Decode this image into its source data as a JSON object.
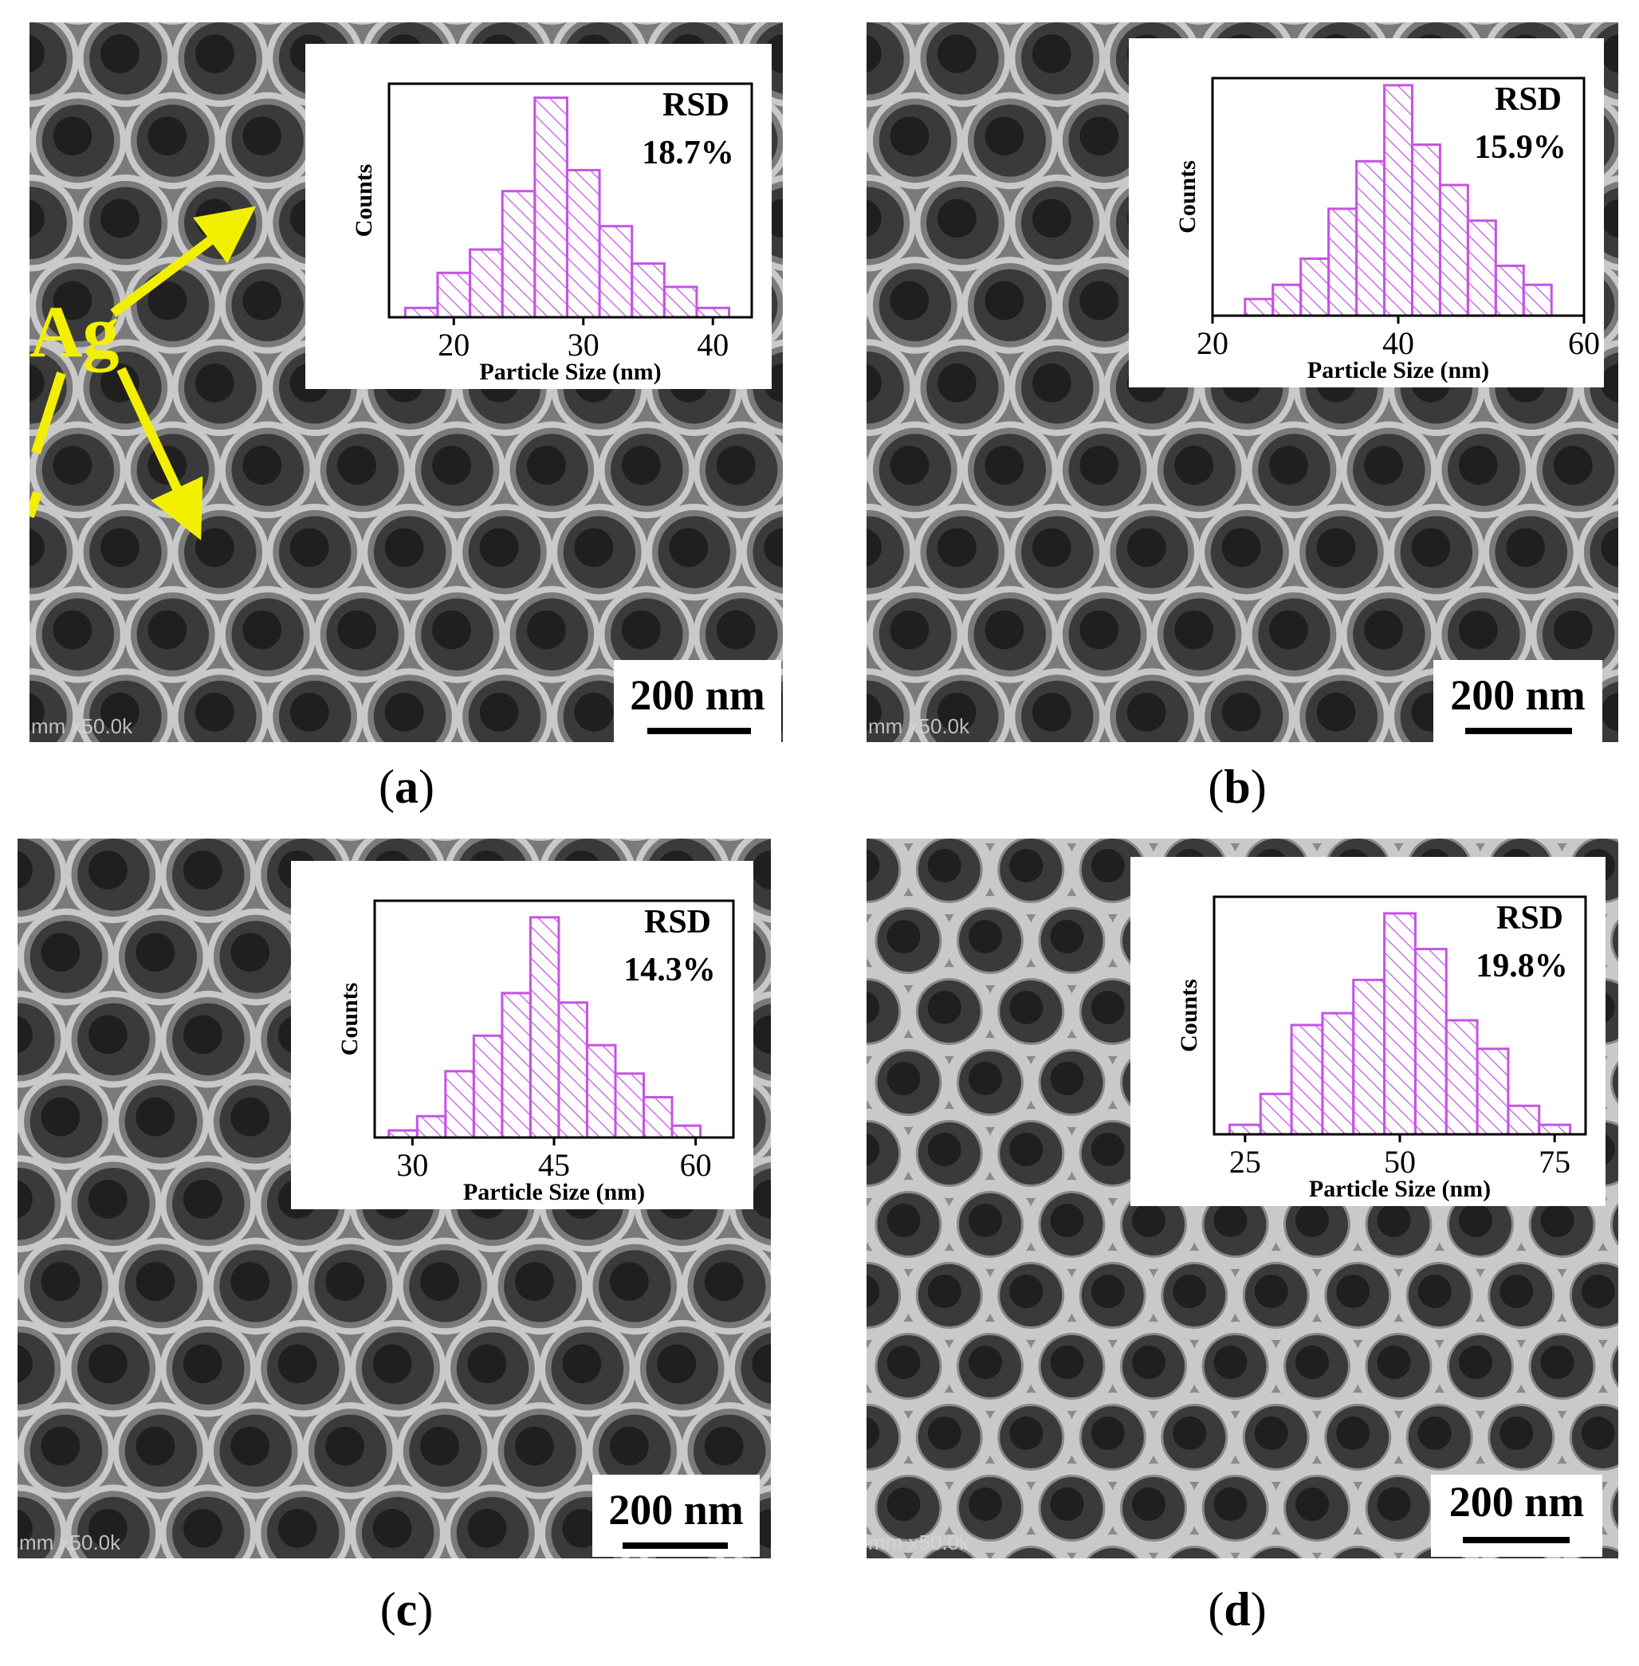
{
  "panels": [
    {
      "id": "a",
      "caption_open": "(",
      "caption_letter": "a",
      "caption_close": ")",
      "scale_bar": "200 nm",
      "magnification": "mm x50.0k",
      "annotation": "Ag",
      "rsd_label": "RSD",
      "rsd_value": "18.7%",
      "chart_data": {
        "type": "bar",
        "xlabel": "Particle Size (nm)",
        "ylabel": "Counts",
        "xlim": [
          15,
          43
        ],
        "ylim": [
          0,
          100
        ],
        "xticks": [
          20,
          30,
          40
        ],
        "bin_width": 2.5,
        "x": [
          17.5,
          20,
          22.5,
          25,
          27.5,
          30,
          32.5,
          35,
          37.5,
          40
        ],
        "values": [
          4,
          19,
          29,
          54,
          94,
          63,
          39,
          23,
          13,
          4
        ]
      }
    },
    {
      "id": "b",
      "caption_open": "(",
      "caption_letter": "b",
      "caption_close": ")",
      "scale_bar": "200 nm",
      "magnification": "mm x50.0k",
      "rsd_label": "RSD",
      "rsd_value": "15.9%",
      "chart_data": {
        "type": "bar",
        "xlabel": "Particle Size (nm)",
        "ylabel": "Counts",
        "xlim": [
          20,
          60
        ],
        "ylim": [
          0,
          100
        ],
        "xticks": [
          20,
          40,
          60
        ],
        "bin_width": 3,
        "x": [
          25,
          28,
          31,
          34,
          37,
          40,
          43,
          46,
          49,
          52,
          55
        ],
        "values": [
          7,
          13,
          24,
          45,
          65,
          97,
          72,
          55,
          40,
          21,
          13
        ]
      }
    },
    {
      "id": "c",
      "caption_open": "(",
      "caption_letter": "c",
      "caption_close": ")",
      "scale_bar": "200 nm",
      "magnification": "mm x50.0k",
      "rsd_label": "RSD",
      "rsd_value": "14.3%",
      "chart_data": {
        "type": "bar",
        "xlabel": "Particle Size (nm)",
        "ylabel": "Counts",
        "xlim": [
          26,
          64
        ],
        "ylim": [
          0,
          100
        ],
        "xticks": [
          30,
          45,
          60
        ],
        "bin_width": 3,
        "x": [
          29,
          32,
          35,
          38,
          41,
          44,
          47,
          50,
          53,
          56,
          59
        ],
        "values": [
          3,
          9,
          28,
          43,
          61,
          93,
          57,
          39,
          27,
          17,
          5
        ]
      }
    },
    {
      "id": "d",
      "caption_open": "(",
      "caption_letter": "d",
      "caption_close": ")",
      "scale_bar": "200 nm",
      "magnification": "mm x50.0k",
      "rsd_label": "RSD",
      "rsd_value": "19.8%",
      "chart_data": {
        "type": "bar",
        "xlabel": "Particle Size (nm)",
        "ylabel": "Counts",
        "xlim": [
          20,
          80
        ],
        "ylim": [
          0,
          100
        ],
        "xticks": [
          25,
          50,
          75
        ],
        "bin_width": 5,
        "x": [
          25,
          30,
          35,
          40,
          45,
          50,
          55,
          60,
          65,
          70,
          75
        ],
        "values": [
          4,
          17,
          46,
          51,
          65,
          93,
          78,
          48,
          36,
          12,
          4
        ]
      }
    }
  ],
  "colors": {
    "bar_edge": "#c653e6",
    "bar_hatch": "#c653e6",
    "annotation": "#f2f000",
    "sem_background": "#6b6b6b"
  }
}
